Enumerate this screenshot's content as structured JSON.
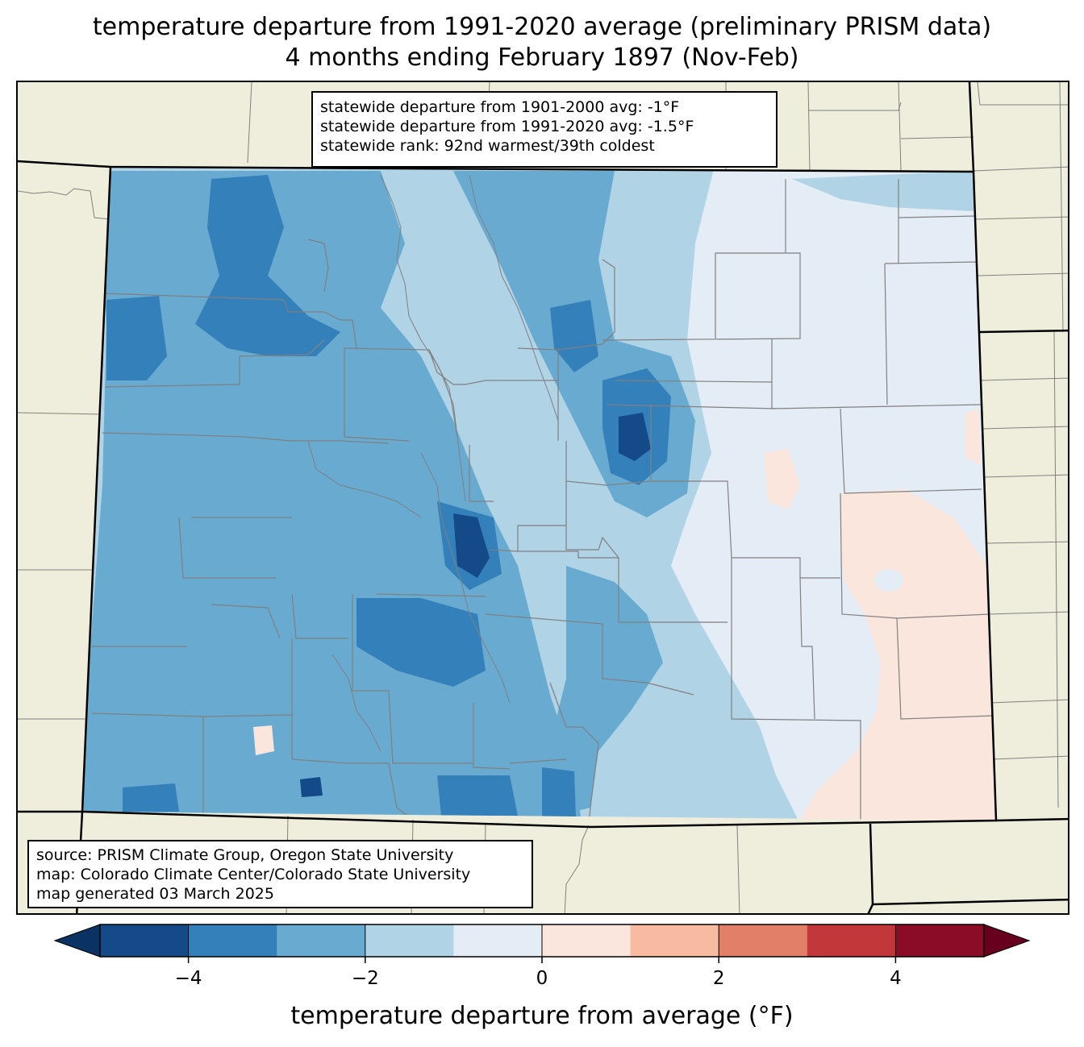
{
  "title": {
    "line1": "temperature departure from 1991-2020 average (preliminary PRISM data)",
    "line2": "4 months ending February 1897 (Nov-Feb)"
  },
  "stats": {
    "line1": "statewide departure from 1901-2000 avg: -1°F",
    "line2": "statewide departure from 1991-2020 avg: -1.5°F",
    "line3": "statewide rank: 92nd warmest/39th coldest"
  },
  "source": {
    "line1": "source: PRISM Climate Group, Oregon State University",
    "line2": "map: Colorado Climate Center/Colorado State University",
    "line3": "map generated 03 March 2025"
  },
  "colorbar": {
    "label": "temperature departure from average (°F)",
    "ticks": [
      "−4",
      "−2",
      "0",
      "2",
      "4"
    ],
    "tick_values": [
      -4,
      -2,
      0,
      2,
      4
    ],
    "range": [
      -5,
      5
    ],
    "bins": [
      {
        "from": -5,
        "to": -4,
        "color": "#144a87"
      },
      {
        "from": -4,
        "to": -3,
        "color": "#3480ba"
      },
      {
        "from": -3,
        "to": -2,
        "color": "#68aad0"
      },
      {
        "from": -2,
        "to": -1,
        "color": "#b0d3e6"
      },
      {
        "from": -1,
        "to": 0,
        "color": "#e4edf5"
      },
      {
        "from": 0,
        "to": 1,
        "color": "#fbe6dd"
      },
      {
        "from": 1,
        "to": 2,
        "color": "#f8baa0"
      },
      {
        "from": 2,
        "to": 3,
        "color": "#e27f68"
      },
      {
        "from": 3,
        "to": 4,
        "color": "#c1373a"
      },
      {
        "from": 4,
        "to": 5,
        "color": "#8a0c27"
      }
    ],
    "under_color": "#0a3263",
    "over_color": "#67001f"
  },
  "map_colors": {
    "land": "#efeedc",
    "state_border": "#000000",
    "county_border": "#808080"
  }
}
